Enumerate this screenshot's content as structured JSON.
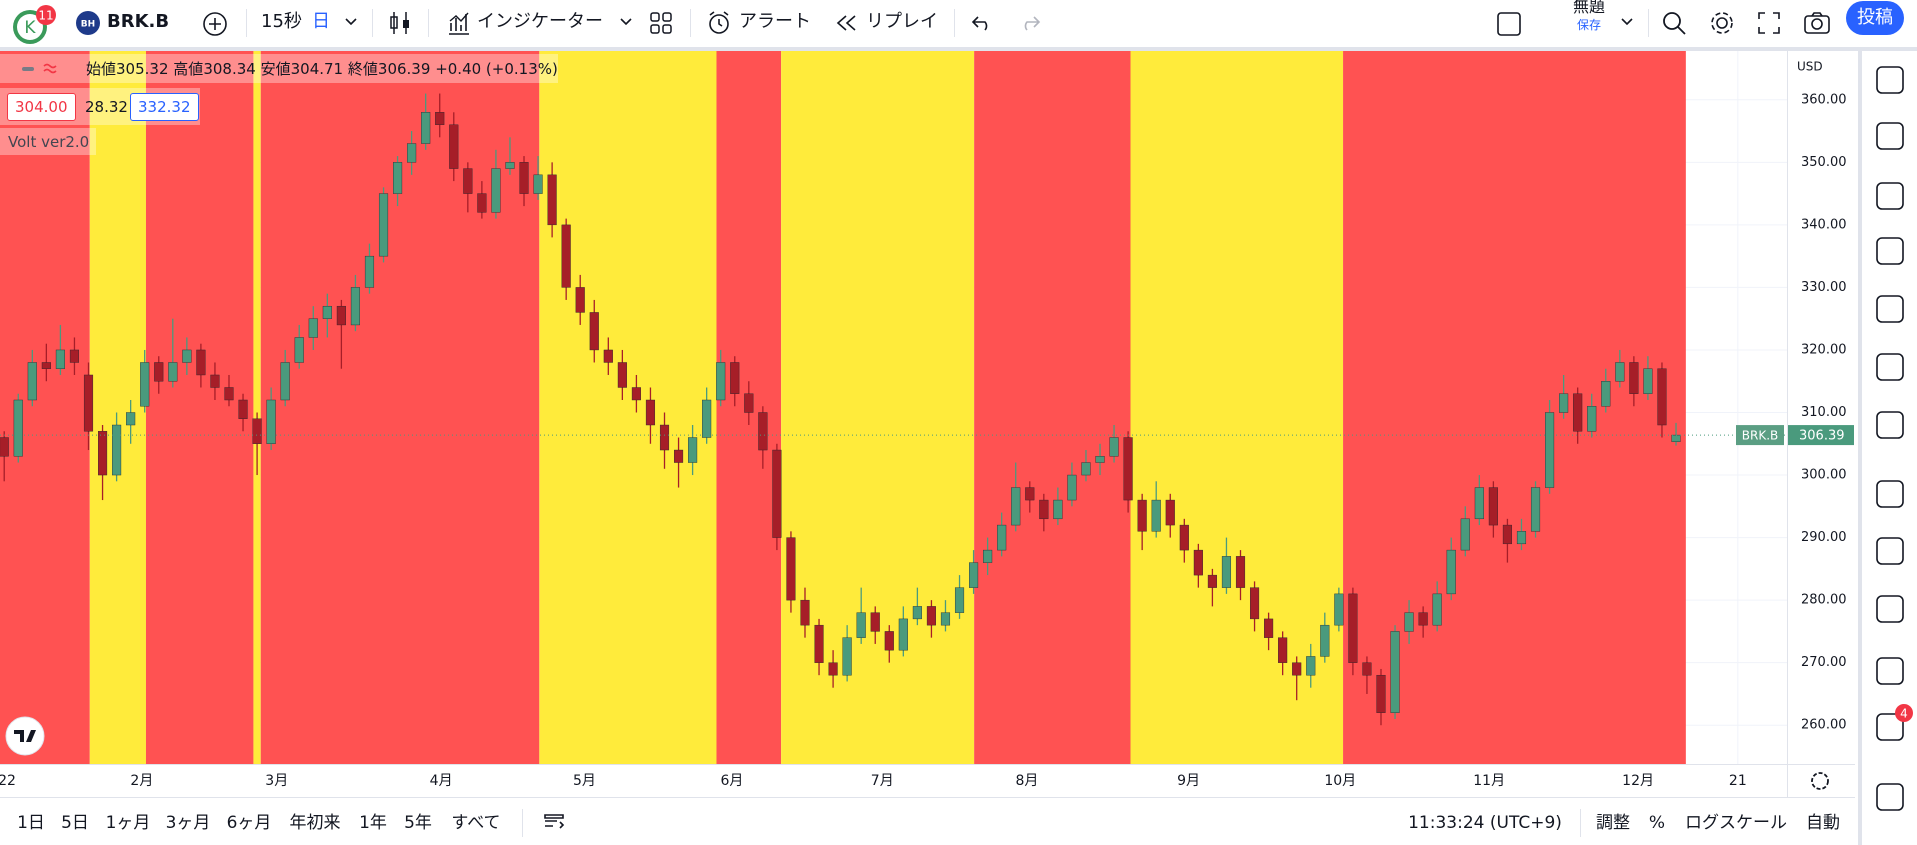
{
  "toolbar": {
    "avatar": "K",
    "avatar_badge": "11",
    "symbol_icon": "BH",
    "symbol": "BRK.B",
    "interval": "15秒",
    "chart_period": "日",
    "indicators": "インジケーター",
    "alert": "アラート",
    "replay": "リプレイ",
    "layout_name": "無題",
    "save": "保存",
    "publish": "投稿"
  },
  "legend": {
    "open_label": "始値",
    "high_label": "高値",
    "low_label": "安値",
    "close_label": "終値",
    "change": "+0.40 (+0.13%)"
  },
  "indicator": {
    "lower": "304.00",
    "middle": "28.32",
    "upper": "332.32",
    "name": "Volt ver2.0"
  },
  "price_axis": {
    "currency": "USD",
    "symbol_label": "BRK.B"
  },
  "right_sidebar": {
    "notification_badge": "4"
  },
  "bottom_bar": {
    "ranges": [
      "1日",
      "5日",
      "1ヶ月",
      "3ヶ月",
      "6ヶ月",
      "年初来",
      "1年",
      "5年",
      "すべて"
    ],
    "clock": "11:33:24 (UTC+9)",
    "adjust": "調整",
    "percent": "%",
    "log_scale": "ログスケール",
    "auto": "自動"
  },
  "chart_data": {
    "type": "candlestick",
    "up_color": "#4a9a7d",
    "down_color": "#a61e28",
    "xlim": [
      -0.3,
      126.9
    ],
    "ylim": [
      253.8,
      367.8
    ],
    "yticks": [
      {
        "value": 260,
        "label": "260.00"
      },
      {
        "value": 270,
        "label": "270.00"
      },
      {
        "value": 280,
        "label": "280.00"
      },
      {
        "value": 290,
        "label": "290.00"
      },
      {
        "value": 300,
        "label": "300.00"
      },
      {
        "value": 310,
        "label": "310.00"
      },
      {
        "value": 320,
        "label": "320.00"
      },
      {
        "value": 330,
        "label": "330.00"
      },
      {
        "value": 340,
        "label": "340.00"
      },
      {
        "value": 350,
        "label": "350.00"
      },
      {
        "value": 360,
        "label": "360.00"
      }
    ],
    "xticks": [
      {
        "value": 0.2,
        "label": "22"
      },
      {
        "value": 9.8,
        "label": "2月"
      },
      {
        "value": 19.4,
        "label": "3月"
      },
      {
        "value": 31.1,
        "label": "4月"
      },
      {
        "value": 41.3,
        "label": "5月"
      },
      {
        "value": 51.8,
        "label": "6月"
      },
      {
        "value": 62.5,
        "label": "7月"
      },
      {
        "value": 72.8,
        "label": "8月"
      },
      {
        "value": 84.3,
        "label": "9月"
      },
      {
        "value": 95.1,
        "label": "10月"
      },
      {
        "value": 105.7,
        "label": "11月"
      },
      {
        "value": 116.3,
        "label": "12月"
      },
      {
        "value": 123.4,
        "label": "21"
      }
    ],
    "bands": [
      [
        -0.3,
        6.09,
        "#ff5252"
      ],
      [
        6.09,
        10.09,
        "#ffeb3b"
      ],
      [
        10.09,
        17.74,
        "#ff5252"
      ],
      [
        17.74,
        18.26,
        "#ffeb3b"
      ],
      [
        18.26,
        38.09,
        "#ff5252"
      ],
      [
        38.09,
        50.7,
        "#ffeb3b"
      ],
      [
        50.7,
        55.3,
        "#ff5252"
      ],
      [
        55.3,
        69.04,
        "#ffeb3b"
      ],
      [
        69.04,
        80.17,
        "#ff5252"
      ],
      [
        80.17,
        95.3,
        "#ffeb3b"
      ],
      [
        95.3,
        119.7,
        "#ff5252"
      ]
    ],
    "candles": [
      [
        306,
        307,
        299,
        303
      ],
      [
        303,
        313,
        302,
        312
      ],
      [
        312,
        320,
        311,
        318
      ],
      [
        318,
        321,
        315,
        317
      ],
      [
        317,
        324,
        316,
        320
      ],
      [
        320,
        322,
        316,
        318
      ],
      [
        316,
        318,
        304,
        307
      ],
      [
        307,
        308,
        296,
        300
      ],
      [
        300,
        310,
        299,
        308
      ],
      [
        308,
        312,
        305,
        310
      ],
      [
        311,
        320,
        310,
        318
      ],
      [
        318,
        319,
        313,
        315
      ],
      [
        315,
        325,
        314,
        318
      ],
      [
        318,
        322,
        316,
        320
      ],
      [
        320,
        321,
        314,
        316
      ],
      [
        316,
        318,
        312,
        314
      ],
      [
        314,
        316,
        311,
        312
      ],
      [
        312,
        313,
        307,
        309
      ],
      [
        309,
        310,
        300,
        305
      ],
      [
        305,
        314,
        304,
        312
      ],
      [
        312,
        320,
        311,
        318
      ],
      [
        318,
        324,
        317,
        322
      ],
      [
        322,
        327,
        320,
        325
      ],
      [
        325,
        329,
        322,
        327
      ],
      [
        327,
        328,
        317,
        324
      ],
      [
        324,
        332,
        323,
        330
      ],
      [
        330,
        337,
        329,
        335
      ],
      [
        335,
        346,
        334,
        345
      ],
      [
        345,
        351,
        343,
        350
      ],
      [
        350,
        355,
        348,
        353
      ],
      [
        353,
        361,
        352,
        358
      ],
      [
        358,
        361,
        354,
        356
      ],
      [
        356,
        358,
        347,
        349
      ],
      [
        349,
        350,
        342,
        345
      ],
      [
        345,
        347,
        341,
        342
      ],
      [
        342,
        352,
        341,
        349
      ],
      [
        349,
        354,
        348,
        350
      ],
      [
        350,
        351,
        343,
        345
      ],
      [
        345,
        351,
        344,
        348
      ],
      [
        348,
        350,
        338,
        340
      ],
      [
        340,
        341,
        328,
        330
      ],
      [
        330,
        332,
        324,
        326
      ],
      [
        326,
        328,
        318,
        320
      ],
      [
        320,
        322,
        316,
        318
      ],
      [
        318,
        320,
        312,
        314
      ],
      [
        314,
        316,
        310,
        312
      ],
      [
        312,
        314,
        305,
        308
      ],
      [
        308,
        310,
        301,
        304
      ],
      [
        304,
        306,
        298,
        302
      ],
      [
        302,
        308,
        300,
        306
      ],
      [
        306,
        314,
        305,
        312
      ],
      [
        312,
        320,
        311,
        318
      ],
      [
        318,
        319,
        311,
        313
      ],
      [
        313,
        315,
        308,
        310
      ],
      [
        310,
        311,
        301,
        304
      ],
      [
        304,
        305,
        288,
        290
      ],
      [
        290,
        291,
        278,
        280
      ],
      [
        280,
        282,
        274,
        276
      ],
      [
        276,
        277,
        268,
        270
      ],
      [
        270,
        272,
        266,
        268
      ],
      [
        268,
        276,
        267,
        274
      ],
      [
        274,
        282,
        273,
        278
      ],
      [
        278,
        279,
        273,
        275
      ],
      [
        275,
        276,
        270,
        272
      ],
      [
        272,
        279,
        271,
        277
      ],
      [
        277,
        282,
        276,
        279
      ],
      [
        279,
        280,
        274,
        276
      ],
      [
        276,
        280,
        275,
        278
      ],
      [
        278,
        284,
        277,
        282
      ],
      [
        282,
        288,
        281,
        286
      ],
      [
        286,
        290,
        284,
        288
      ],
      [
        288,
        294,
        287,
        292
      ],
      [
        292,
        302,
        291,
        298
      ],
      [
        298,
        299,
        294,
        296
      ],
      [
        296,
        297,
        291,
        293
      ],
      [
        293,
        298,
        292,
        296
      ],
      [
        296,
        302,
        295,
        300
      ],
      [
        300,
        304,
        299,
        302
      ],
      [
        302,
        305,
        300,
        303
      ],
      [
        303,
        308,
        302,
        306
      ],
      [
        306,
        307,
        294,
        296
      ],
      [
        296,
        297,
        288,
        291
      ],
      [
        291,
        299,
        290,
        296
      ],
      [
        296,
        297,
        290,
        292
      ],
      [
        292,
        293,
        286,
        288
      ],
      [
        288,
        289,
        282,
        284
      ],
      [
        284,
        285,
        279,
        282
      ],
      [
        282,
        290,
        281,
        287
      ],
      [
        287,
        288,
        280,
        282
      ],
      [
        282,
        283,
        275,
        277
      ],
      [
        277,
        278,
        272,
        274
      ],
      [
        274,
        275,
        268,
        270
      ],
      [
        270,
        271,
        264,
        268
      ],
      [
        268,
        273,
        266,
        271
      ],
      [
        271,
        278,
        270,
        276
      ],
      [
        276,
        282,
        275,
        281
      ],
      [
        281,
        282,
        268,
        270
      ],
      [
        270,
        271,
        265,
        268
      ],
      [
        268,
        269,
        260,
        262
      ],
      [
        262,
        276,
        261,
        275
      ],
      [
        275,
        280,
        273,
        278
      ],
      [
        278,
        279,
        274,
        276
      ],
      [
        276,
        283,
        275,
        281
      ],
      [
        281,
        290,
        280,
        288
      ],
      [
        288,
        295,
        287,
        293
      ],
      [
        293,
        300,
        292,
        298
      ],
      [
        298,
        299,
        290,
        292
      ],
      [
        292,
        293,
        286,
        289
      ],
      [
        289,
        293,
        288,
        291
      ],
      [
        291,
        299,
        290,
        298
      ],
      [
        298,
        312,
        297,
        310
      ],
      [
        310,
        316,
        309,
        313
      ],
      [
        313,
        314,
        305,
        307
      ],
      [
        307,
        313,
        306,
        311
      ],
      [
        311,
        317,
        310,
        315
      ],
      [
        315,
        320,
        314,
        318
      ],
      [
        318,
        319,
        311,
        313
      ],
      [
        313,
        319,
        312,
        317
      ],
      [
        317,
        318,
        306,
        308
      ],
      [
        305.32,
        308.34,
        304.71,
        306.39
      ]
    ]
  }
}
